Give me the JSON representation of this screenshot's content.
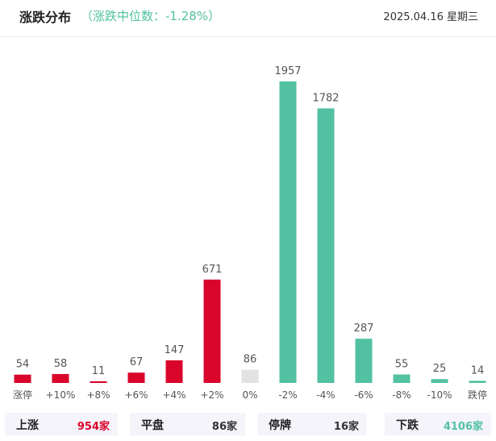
{
  "header": {
    "title": "涨跌分布",
    "subtitle": "（涨跌中位数：-1.28%）",
    "date": "2025.04.16 星期三"
  },
  "colors": {
    "up": "#d9052b",
    "flat": "#e2e2e2",
    "down": "#52c1a1"
  },
  "chart_data": {
    "type": "bar",
    "title": "涨跌分布",
    "categories": [
      "涨停",
      "+10%",
      "+8%",
      "+6%",
      "+4%",
      "+2%",
      "0%",
      "-2%",
      "-4%",
      "-6%",
      "-8%",
      "-10%",
      "跌停"
    ],
    "values": [
      54,
      58,
      11,
      67,
      147,
      671,
      86,
      1957,
      1782,
      287,
      55,
      25,
      14
    ],
    "bar_colors": [
      "up",
      "up",
      "up",
      "up",
      "up",
      "up",
      "flat",
      "down",
      "down",
      "down",
      "down",
      "down",
      "down"
    ],
    "grid": false,
    "legend": "none"
  },
  "summary": [
    {
      "label": "上涨",
      "value": "954家",
      "color": "#d9052b"
    },
    {
      "label": "平盘",
      "value": "86家",
      "color": "#333333"
    },
    {
      "label": "停牌",
      "value": "16家",
      "color": "#333333"
    },
    {
      "label": "下跌",
      "value": "4106家",
      "color": "#52c1a1"
    }
  ]
}
